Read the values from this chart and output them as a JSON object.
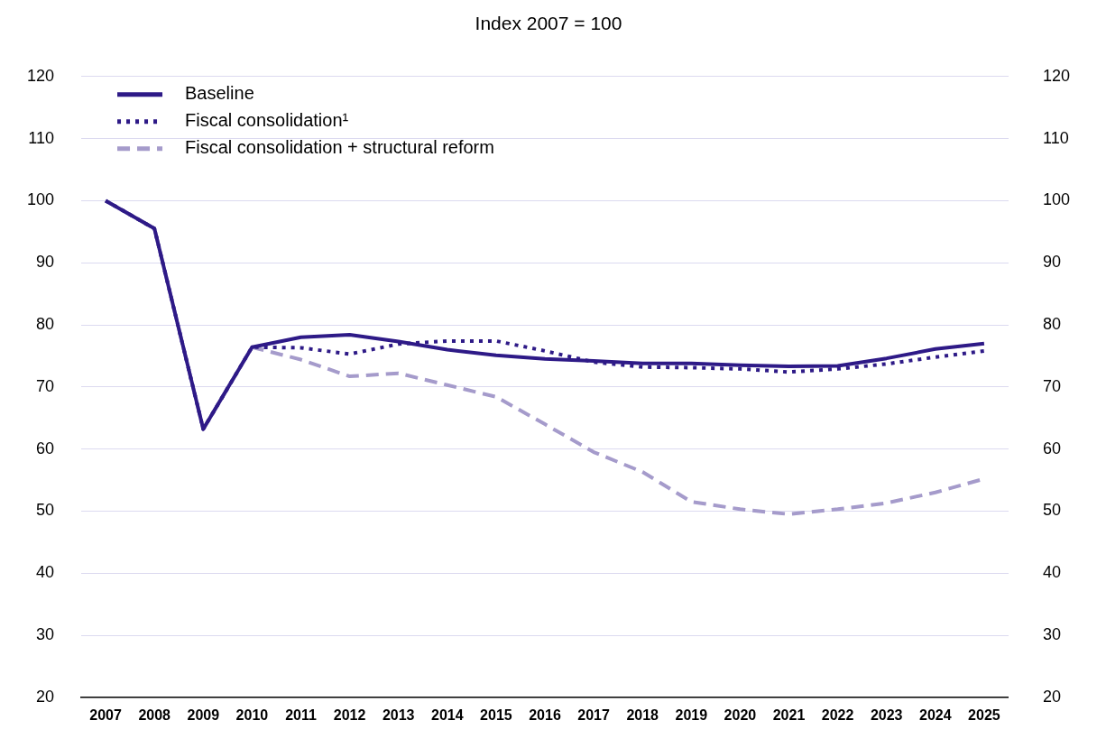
{
  "chart_data": {
    "type": "line",
    "title": "Index 2007 = 100",
    "categories": [
      "2007",
      "2008",
      "2009",
      "2010",
      "2011",
      "2012",
      "2013",
      "2014",
      "2015",
      "2016",
      "2017",
      "2018",
      "2019",
      "2020",
      "2021",
      "2022",
      "2023",
      "2024",
      "2025"
    ],
    "series": [
      {
        "name": "Baseline",
        "color": "#2e1a87",
        "line_style": "solid",
        "values": [
          100,
          95.5,
          63.2,
          76.4,
          78.0,
          78.4,
          77.3,
          76.0,
          75.1,
          74.5,
          74.2,
          73.8,
          73.8,
          73.5,
          73.3,
          73.4,
          74.6,
          76.1,
          77.0
        ]
      },
      {
        "name": "Fiscal consolidation¹",
        "color": "#2e1a87",
        "line_style": "dotted",
        "values": [
          100,
          95.5,
          63.2,
          76.4,
          76.3,
          75.3,
          76.9,
          77.4,
          77.4,
          75.8,
          74.0,
          73.2,
          73.1,
          72.9,
          72.4,
          72.9,
          73.7,
          74.8,
          75.8
        ]
      },
      {
        "name": "Fiscal consolidation + structural reform",
        "color": "#a59bcb",
        "line_style": "dashed",
        "values": [
          100,
          95.5,
          63.2,
          76.4,
          74.4,
          71.7,
          72.2,
          70.3,
          68.4,
          64.0,
          59.5,
          56.3,
          51.5,
          50.3,
          49.5,
          50.3,
          51.3,
          53.0,
          55.2
        ]
      }
    ],
    "ylim": [
      20,
      120
    ],
    "yticks": [
      20,
      30,
      40,
      50,
      60,
      70,
      80,
      90,
      100,
      110,
      120
    ],
    "y2lim": [
      20,
      120
    ],
    "y2ticks": [
      20,
      30,
      40,
      50,
      60,
      70,
      80,
      90,
      100,
      110,
      120
    ],
    "grid": "y",
    "legend": "top left",
    "marker": "none"
  }
}
